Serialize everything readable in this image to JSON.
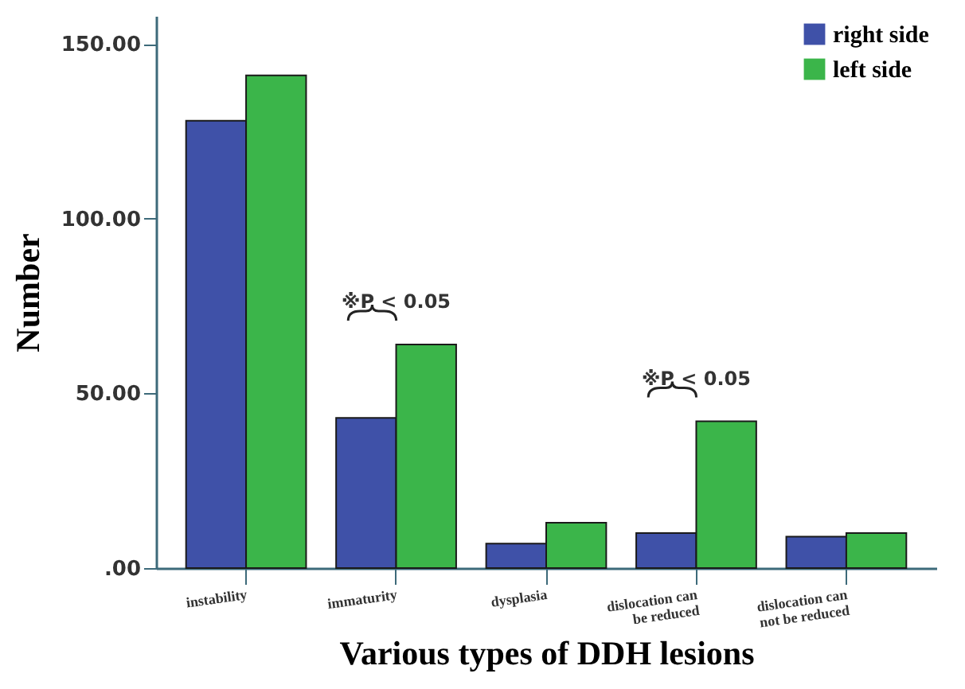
{
  "chart_data": {
    "type": "bar",
    "xlabel": "Various types of DDH lesions",
    "ylabel": "Number",
    "categories": [
      "instability",
      "immaturity",
      "dysplasia",
      "dislocation can be reduced",
      "dislocation can not be reduced"
    ],
    "series": [
      {
        "name": "right side",
        "color": "#3f51a8",
        "values": [
          128,
          43,
          7,
          10,
          9
        ]
      },
      {
        "name": "left side",
        "color": "#3bb54a",
        "values": [
          141,
          64,
          13,
          42,
          10
        ]
      }
    ],
    "ylim": [
      0,
      158
    ],
    "yticks": [
      {
        "value": 0,
        "label": ".00"
      },
      {
        "value": 50,
        "label": "50.00"
      },
      {
        "value": 100,
        "label": "100.00"
      },
      {
        "value": 150,
        "label": "150.00"
      }
    ],
    "annotations": [
      "※P < 0.05",
      "※P < 0.05"
    ],
    "legend": "top right",
    "grid": false
  }
}
